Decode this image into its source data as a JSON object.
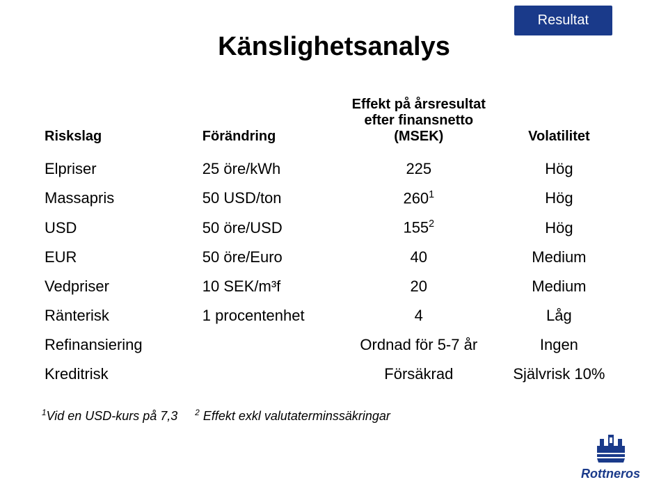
{
  "badge": "Resultat",
  "title": "Känslighetsanalys",
  "headers": {
    "risk": "Riskslag",
    "change": "Förändring",
    "effect_l1": "Effekt på årsresultat",
    "effect_l2": "efter finansnetto",
    "effect_l3": "(MSEK)",
    "vol": "Volatilitet"
  },
  "rows": [
    {
      "risk": "Elpriser",
      "change": "25 öre/kWh",
      "effect": "225",
      "sup": "",
      "vol": "Hög"
    },
    {
      "risk": "Massapris",
      "change": "50 USD/ton",
      "effect": "260",
      "sup": "1",
      "vol": "Hög"
    },
    {
      "risk": "USD",
      "change": "50 öre/USD",
      "effect": "155",
      "sup": "2",
      "vol": "Hög"
    },
    {
      "risk": "EUR",
      "change": "50 öre/Euro",
      "effect": "40",
      "sup": "",
      "vol": "Medium"
    },
    {
      "risk": "Vedpriser",
      "change": "10 SEK/m³f",
      "effect": "20",
      "sup": "",
      "vol": "Medium"
    },
    {
      "risk": "Ränterisk",
      "change": "1 procentenhet",
      "effect": "4",
      "sup": "",
      "vol": "Låg"
    },
    {
      "risk": "Refinansiering",
      "change": "",
      "effect": "Ordnad för 5-7 år",
      "sup": "",
      "vol": "Ingen"
    },
    {
      "risk": "Kreditrisk",
      "change": "",
      "effect": "Försäkrad",
      "sup": "",
      "vol": "Självrisk 10%"
    }
  ],
  "footnote": {
    "a_sup": "1",
    "a": "Vid en USD-kurs på 7,3",
    "b_sup": "2",
    "b": " Effekt exkl valutaterminssäkringar"
  },
  "logo": {
    "name": "Rottneros"
  },
  "colors": {
    "brand": "#1a3a8a",
    "text": "#000000",
    "bg": "#ffffff"
  }
}
